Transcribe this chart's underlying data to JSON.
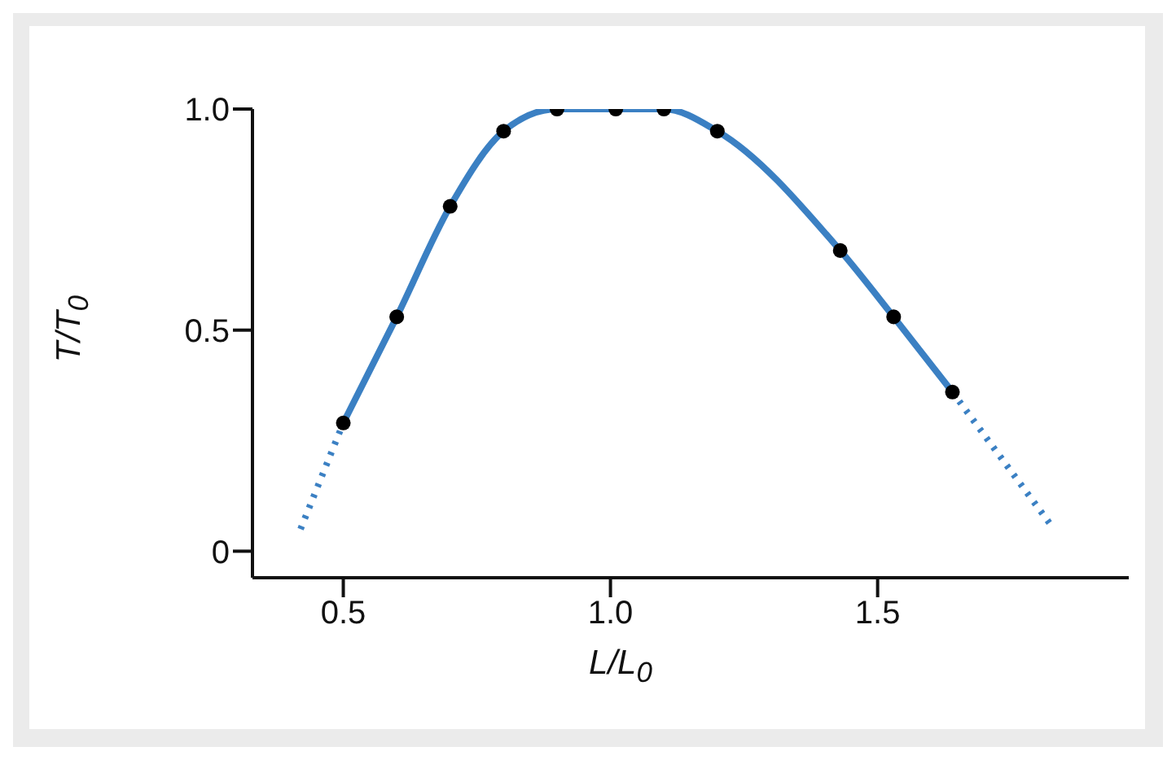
{
  "chart_data": {
    "type": "line",
    "xlabel": "L/L$_{0}$",
    "ylabel": "T/T$_{0}$",
    "xlim": [
      0.33,
      1.97
    ],
    "xticks": [
      0.5,
      {
        "value": 1.0,
        "label": "1.0"
      },
      1.5
    ],
    "ylim": [
      -0.06,
      1.0
    ],
    "yticks": [
      0,
      0.5,
      {
        "value": 1.0,
        "label": "1.0"
      }
    ],
    "series": [
      {
        "color": "#3b80c3",
        "marker": "none",
        "line_style": "solid",
        "x": [
          0.5,
          0.6,
          0.7,
          0.8,
          0.9,
          1.01,
          1.1,
          1.2,
          1.43,
          1.53,
          1.64
        ],
        "values": [
          0.29,
          0.53,
          0.78,
          0.95,
          1.0,
          1.0,
          1.0,
          0.95,
          0.68,
          0.53,
          0.36
        ]
      },
      {
        "color": "#3b80c3",
        "marker": "none",
        "line_style": "dotted",
        "x": [
          0.42,
          0.5
        ],
        "values": [
          0.05,
          0.29
        ]
      },
      {
        "color": "#3b80c3",
        "marker": "none",
        "line_style": "dotted",
        "x": [
          1.64,
          1.83
        ],
        "values": [
          0.36,
          0.05
        ]
      },
      {
        "type": "scatter",
        "color": "#000000",
        "marker": "circle",
        "x": [
          0.5,
          0.6,
          0.7,
          0.8,
          0.9,
          1.01,
          1.1,
          1.2,
          1.43,
          1.53,
          1.64
        ],
        "values": [
          0.29,
          0.53,
          0.78,
          0.95,
          1.0,
          1.0,
          1.0,
          0.95,
          0.68,
          0.53,
          0.36
        ]
      }
    ]
  }
}
